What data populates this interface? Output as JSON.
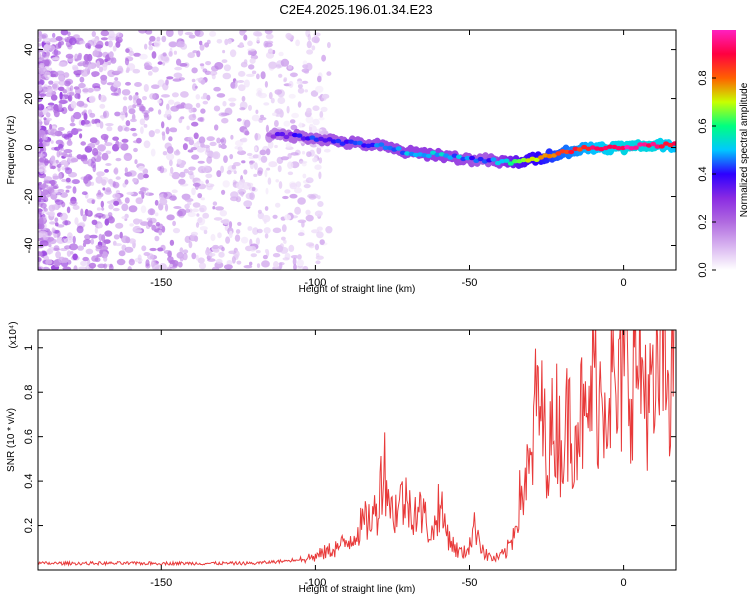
{
  "title": "C2E4.2025.196.01.34.E23",
  "chart_data": [
    {
      "type": "heatmap",
      "title": "C2E4.2025.196.01.34.E23",
      "xlabel": "Height of straight line (km)",
      "ylabel": "Frequency (Hz)",
      "xlim": [
        -190,
        17
      ],
      "ylim": [
        -50,
        48
      ],
      "xticks": [
        -150,
        -100,
        -50,
        0
      ],
      "yticks": [
        -40,
        -20,
        0,
        20,
        40
      ],
      "colorbar": {
        "label": "Normalized spectral amplitude",
        "range": [
          0,
          1
        ],
        "ticks": [
          0.0,
          0.2,
          0.4,
          0.6,
          0.8
        ],
        "colormap": [
          "#ffffff",
          "#d8b4f0",
          "#b06ae0",
          "#8a2be2",
          "#2d00ff",
          "#00c8ff",
          "#00ff80",
          "#c8ff00",
          "#ff6000",
          "#ff0040",
          "#ff20c0"
        ]
      },
      "ridge": {
        "x": [
          -115,
          -110,
          -100,
          -90,
          -80,
          -70,
          -60,
          -50,
          -45,
          -40,
          -35,
          -30,
          -20,
          -10,
          0,
          10,
          17
        ],
        "y": [
          5,
          5,
          4,
          2,
          1,
          -2,
          -3,
          -5,
          -5,
          -6,
          -6,
          -5,
          -2,
          0,
          0,
          1,
          1
        ],
        "amplitude": [
          0.25,
          0.35,
          0.4,
          0.42,
          0.45,
          0.48,
          0.5,
          0.45,
          0.4,
          0.5,
          0.62,
          0.7,
          0.82,
          0.9,
          0.95,
          0.95,
          0.9
        ]
      },
      "noise_region": {
        "x_start": -190,
        "x_end": -100,
        "amplitude": 0.15
      }
    },
    {
      "type": "line",
      "xlabel": "Height of straight line (km)",
      "ylabel": "SNR (10 * v/v)",
      "multiplier": "(x10⁴)",
      "xlim": [
        -190,
        17
      ],
      "ylim": [
        0,
        1.08
      ],
      "xticks": [
        -150,
        -100,
        -50,
        0
      ],
      "yticks": [
        0.2,
        0.4,
        0.6,
        0.8,
        1.0
      ],
      "color": "#e83a3a",
      "x": [
        -190,
        -180,
        -170,
        -160,
        -150,
        -140,
        -130,
        -120,
        -110,
        -105,
        -100,
        -95,
        -90,
        -85,
        -80,
        -78,
        -75,
        -72,
        -70,
        -68,
        -65,
        -62,
        -60,
        -58,
        -55,
        -52,
        -50,
        -48,
        -45,
        -42,
        -40,
        -38,
        -36,
        -34,
        -32,
        -30,
        -28,
        -26,
        -24,
        -22,
        -20,
        -18,
        -16,
        -14,
        -12,
        -10,
        -8,
        -6,
        -4,
        -2,
        0,
        2,
        4,
        6,
        8,
        10,
        12,
        14,
        16,
        17
      ],
      "y": [
        0.03,
        0.03,
        0.03,
        0.03,
        0.03,
        0.03,
        0.03,
        0.03,
        0.04,
        0.05,
        0.06,
        0.09,
        0.12,
        0.2,
        0.26,
        0.5,
        0.25,
        0.32,
        0.3,
        0.28,
        0.25,
        0.15,
        0.3,
        0.2,
        0.1,
        0.07,
        0.12,
        0.2,
        0.07,
        0.05,
        0.06,
        0.08,
        0.15,
        0.3,
        0.4,
        0.45,
        0.82,
        0.62,
        0.55,
        0.7,
        0.55,
        0.68,
        0.65,
        0.72,
        0.6,
        0.9,
        0.78,
        0.82,
        0.85,
        0.72,
        0.9,
        0.85,
        0.95,
        0.88,
        0.8,
        0.7,
        1.0,
        0.85,
        0.95,
        0.82
      ]
    }
  ]
}
